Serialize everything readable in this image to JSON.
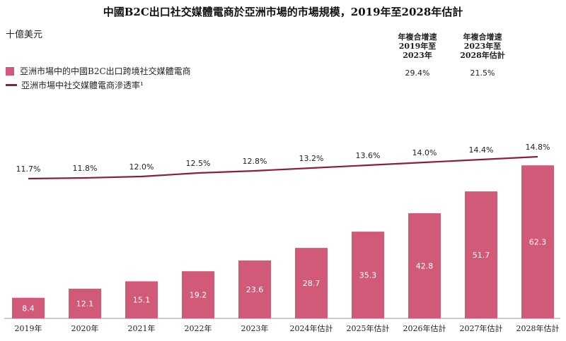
{
  "chart_data": {
    "type": "bar+line",
    "title": "中國B2C出口社交媒體電商於亞洲市場的市場規模，2019年至2028年估計",
    "unit_label": "十億美元",
    "categories": [
      "2019年",
      "2020年",
      "2021年",
      "2022年",
      "2023年",
      "2024年估計",
      "2025年估計",
      "2026年估計",
      "2027年估計",
      "2028年估計"
    ],
    "series": [
      {
        "name": "亞洲市場中的中國B2C出口跨境社交媒體電商",
        "type": "bar",
        "values": [
          8.4,
          12.1,
          15.1,
          19.2,
          23.6,
          28.7,
          35.3,
          42.8,
          51.7,
          62.3
        ],
        "labels": [
          "8.4",
          "12.1",
          "15.1",
          "19.2",
          "23.6",
          "28.7",
          "35.3",
          "42.8",
          "51.7",
          "62.3"
        ]
      },
      {
        "name": "亞洲市場中社交媒體電商滲透率¹",
        "type": "line",
        "values": [
          11.7,
          11.8,
          12.0,
          12.5,
          12.8,
          13.2,
          13.6,
          14.0,
          14.4,
          14.8
        ],
        "labels": [
          "11.7%",
          "11.8%",
          "12.0%",
          "12.5%",
          "12.8%",
          "13.2%",
          "13.6%",
          "14.0%",
          "14.4%",
          "14.8%"
        ]
      }
    ],
    "bar_ylim": [
      0,
      75
    ],
    "line_ylim": [
      7,
      22
    ],
    "grid": false,
    "legend": "top-left",
    "cagr": [
      {
        "header": [
          "年複合增速",
          "2019年至",
          "2023年"
        ],
        "value": "29.4%"
      },
      {
        "header": [
          "年複合增速",
          "2023年至",
          "2028年估計"
        ],
        "value": "21.5%"
      }
    ]
  },
  "colors": {
    "bar": "#D05A78",
    "line": "#8B1E3F",
    "axis": "#999999"
  }
}
